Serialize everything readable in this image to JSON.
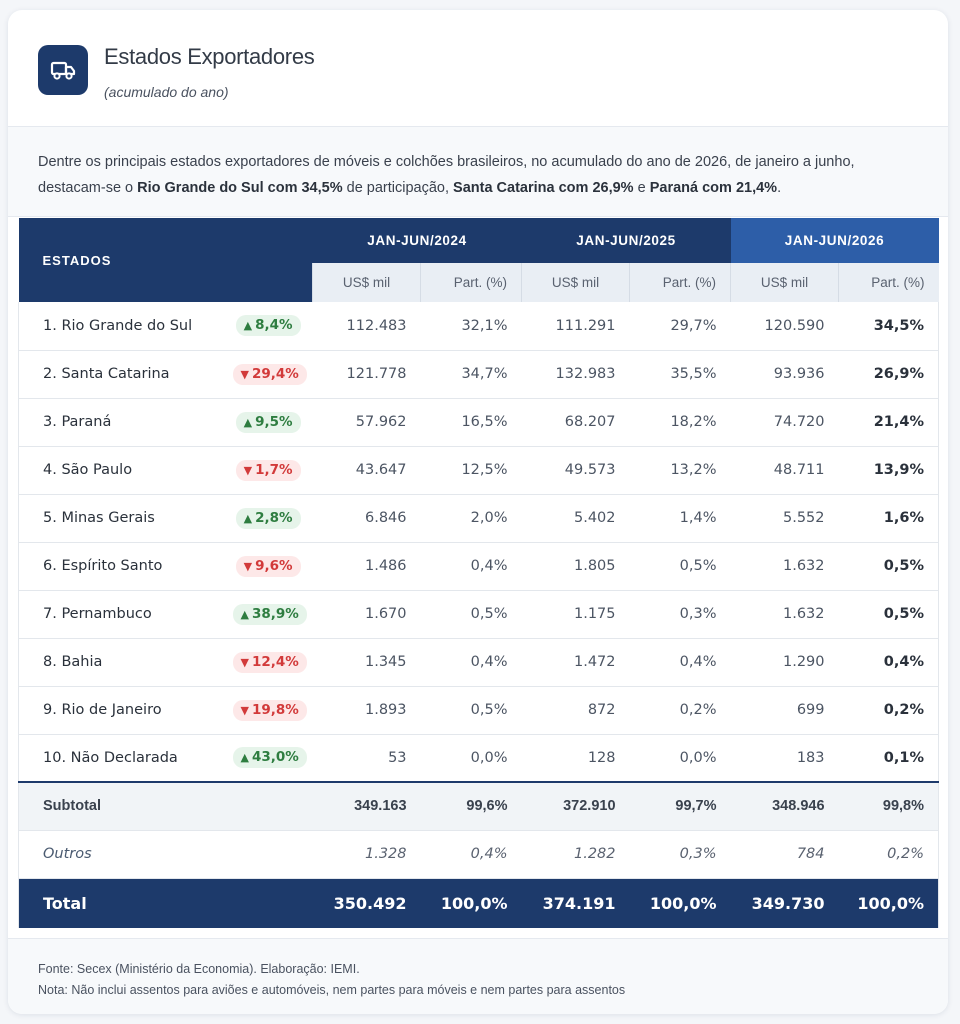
{
  "header": {
    "title": "Estados Exportadores",
    "subtitle": "(acumulado do ano)",
    "icon": "truck-icon"
  },
  "intro": {
    "p1": "Dentre os principais estados exportadores de móveis e colchões brasileiros, no acumulado do ano de 2026, de janeiro a junho, destacam-se o ",
    "b1": "Rio Grande do Sul com 34,5%",
    "p2": " de participação, ",
    "b2": "Santa Catarina com 26,9%",
    "p3": " e ",
    "b3": "Paraná com 21,4%",
    "p4": "."
  },
  "table": {
    "states_header": "ESTADOS",
    "periods": [
      "JAN-JUN/2024",
      "JAN-JUN/2025",
      "JAN-JUN/2026"
    ],
    "sub_headers": {
      "usd": "US$ mil",
      "part": "Part. (%)"
    },
    "rows": [
      {
        "name": "1. Rio Grande do Sul",
        "change": "8,4%",
        "dir": "up",
        "usd24": "112.483",
        "p24": "32,1%",
        "usd25": "111.291",
        "p25": "29,7%",
        "usd26": "120.590",
        "p26": "34,5%"
      },
      {
        "name": "2. Santa Catarina",
        "change": "29,4%",
        "dir": "down",
        "usd24": "121.778",
        "p24": "34,7%",
        "usd25": "132.983",
        "p25": "35,5%",
        "usd26": "93.936",
        "p26": "26,9%"
      },
      {
        "name": "3. Paraná",
        "change": "9,5%",
        "dir": "up",
        "usd24": "57.962",
        "p24": "16,5%",
        "usd25": "68.207",
        "p25": "18,2%",
        "usd26": "74.720",
        "p26": "21,4%"
      },
      {
        "name": "4. São Paulo",
        "change": "1,7%",
        "dir": "down",
        "usd24": "43.647",
        "p24": "12,5%",
        "usd25": "49.573",
        "p25": "13,2%",
        "usd26": "48.711",
        "p26": "13,9%"
      },
      {
        "name": "5. Minas Gerais",
        "change": "2,8%",
        "dir": "up",
        "usd24": "6.846",
        "p24": "2,0%",
        "usd25": "5.402",
        "p25": "1,4%",
        "usd26": "5.552",
        "p26": "1,6%"
      },
      {
        "name": "6. Espírito Santo",
        "change": "9,6%",
        "dir": "down",
        "usd24": "1.486",
        "p24": "0,4%",
        "usd25": "1.805",
        "p25": "0,5%",
        "usd26": "1.632",
        "p26": "0,5%"
      },
      {
        "name": "7. Pernambuco",
        "change": "38,9%",
        "dir": "up",
        "usd24": "1.670",
        "p24": "0,5%",
        "usd25": "1.175",
        "p25": "0,3%",
        "usd26": "1.632",
        "p26": "0,5%"
      },
      {
        "name": "8. Bahia",
        "change": "12,4%",
        "dir": "down",
        "usd24": "1.345",
        "p24": "0,4%",
        "usd25": "1.472",
        "p25": "0,4%",
        "usd26": "1.290",
        "p26": "0,4%"
      },
      {
        "name": "9. Rio de Janeiro",
        "change": "19,8%",
        "dir": "down",
        "usd24": "1.893",
        "p24": "0,5%",
        "usd25": "872",
        "p25": "0,2%",
        "usd26": "699",
        "p26": "0,2%"
      },
      {
        "name": "10. Não Declarada",
        "change": "43,0%",
        "dir": "up",
        "usd24": "53",
        "p24": "0,0%",
        "usd25": "128",
        "p25": "0,0%",
        "usd26": "183",
        "p26": "0,1%"
      }
    ],
    "subtotal": {
      "name": "Subtotal",
      "usd24": "349.163",
      "p24": "99,6%",
      "usd25": "372.910",
      "p25": "99,7%",
      "usd26": "348.946",
      "p26": "99,8%"
    },
    "outros": {
      "name": "Outros",
      "usd24": "1.328",
      "p24": "0,4%",
      "usd25": "1.282",
      "p25": "0,3%",
      "usd26": "784",
      "p26": "0,2%"
    },
    "total": {
      "name": "Total",
      "usd24": "350.492",
      "p24": "100,0%",
      "usd25": "374.191",
      "p25": "100,0%",
      "usd26": "349.730",
      "p26": "100,0%"
    }
  },
  "footer": {
    "source": "Fonte: Secex (Ministério da Economia). Elaboração: IEMI.",
    "note": "Nota: Não inclui assentos para aviões e automóveis, nem partes para móveis e nem partes para assentos"
  },
  "colors": {
    "navy": "#1d3a6b",
    "highlight_header": "#2d5ea8",
    "up_green": "#2e7d40",
    "down_red": "#d23a3a"
  }
}
